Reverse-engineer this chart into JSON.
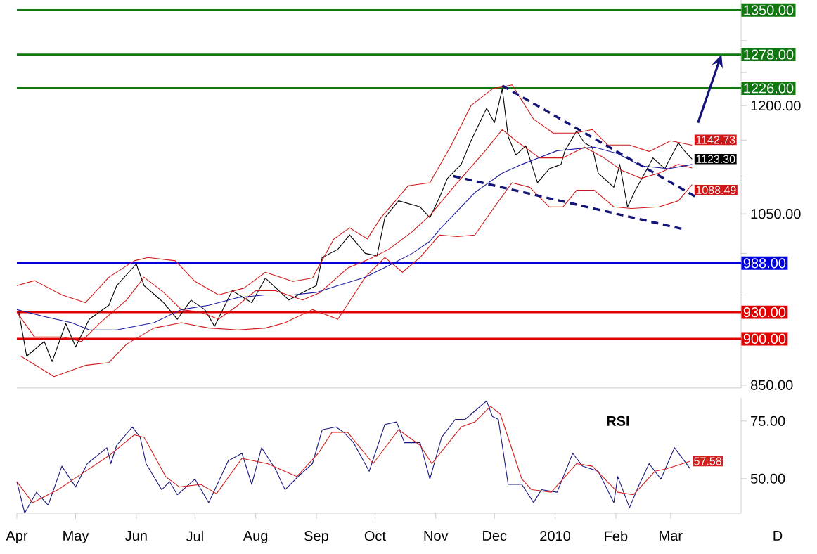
{
  "chart_data": [
    {
      "type": "line",
      "log": "y",
      "tick_labels": "y",
      "xlim": [
        "2009-04-01",
        "2010-04-06"
      ],
      "ylim": [
        847,
        1367
      ],
      "yticks": [
        {
          "value": 850,
          "label": "850.00"
        },
        {
          "value": 900,
          "label": null
        },
        {
          "value": 950,
          "label": null
        },
        {
          "value": 1000,
          "label": null
        },
        {
          "value": 1050,
          "label": "1050.00"
        },
        {
          "value": 1100,
          "label": null
        },
        {
          "value": 1150,
          "label": null
        },
        {
          "value": 1200,
          "label": "1200.00"
        },
        {
          "value": 1250,
          "label": null
        },
        {
          "value": 1300,
          "label": null
        },
        {
          "value": 1350,
          "label": null
        }
      ],
      "series": [
        {
          "color": "#000000",
          "x": [
            "2009-04-02",
            "2009-04-06",
            "2009-04-15",
            "2009-04-19",
            "2009-04-26",
            "2009-05-01",
            "2009-05-08",
            "2009-05-18",
            "2009-05-22",
            "2009-06-01",
            "2009-06-05",
            "2009-06-15",
            "2009-06-22",
            "2009-06-29",
            "2009-07-06",
            "2009-07-11",
            "2009-07-20",
            "2009-07-30",
            "2009-08-06",
            "2009-08-18",
            "2009-08-25",
            "2009-09-01",
            "2009-09-04",
            "2009-09-12",
            "2009-09-18",
            "2009-09-26",
            "2009-10-02",
            "2009-10-06",
            "2009-10-13",
            "2009-10-24",
            "2009-10-29",
            "2009-11-03",
            "2009-11-07",
            "2009-11-14",
            "2009-11-19",
            "2009-11-27",
            "2009-12-01",
            "2009-12-05",
            "2009-12-08",
            "2009-12-12",
            "2009-12-17",
            "2009-12-23",
            "2009-12-29",
            "2010-01-04",
            "2010-01-06",
            "2010-01-12",
            "2010-01-16",
            "2010-01-20",
            "2010-01-23",
            "2010-01-31",
            "2010-02-03",
            "2010-02-07",
            "2010-02-11",
            "2010-02-15",
            "2010-02-20",
            "2010-02-26",
            "2010-03-05",
            "2010-03-08",
            "2010-03-12"
          ],
          "values": [
            930,
            881,
            897,
            875,
            917,
            891,
            922,
            938,
            961,
            987,
            961,
            941,
            922,
            944,
            933,
            914,
            955,
            941,
            970,
            944,
            953,
            961,
            995,
            1005,
            1023,
            1000,
            997,
            1045,
            1067,
            1059,
            1045,
            1072,
            1097,
            1116,
            1149,
            1196,
            1175,
            1225,
            1155,
            1129,
            1142,
            1091,
            1110,
            1116,
            1135,
            1163,
            1146,
            1140,
            1104,
            1085,
            1116,
            1059,
            1081,
            1100,
            1125,
            1110,
            1146,
            1135,
            1123.3
          ],
          "value_labels": [
            null,
            null,
            null,
            null,
            null,
            null,
            null,
            null,
            null,
            null,
            null,
            null,
            null,
            null,
            null,
            null,
            null,
            null,
            null,
            null,
            null,
            null,
            null,
            null,
            null,
            null,
            null,
            null,
            null,
            null,
            null,
            null,
            null,
            null,
            null,
            null,
            null,
            null,
            null,
            null,
            null,
            null,
            null,
            null,
            null,
            null,
            null,
            null,
            null,
            null,
            null,
            null,
            null,
            null,
            null,
            null,
            null,
            null,
            "1123.30"
          ]
        },
        {
          "color": "#d01818",
          "x": [
            "2009-04-01",
            "2009-04-10",
            "2009-04-24",
            "2009-05-06",
            "2009-05-18",
            "2009-05-31",
            "2009-06-07",
            "2009-06-21",
            "2009-07-01",
            "2009-07-13",
            "2009-07-26",
            "2009-08-06",
            "2009-08-20",
            "2009-08-30",
            "2009-09-10",
            "2009-09-18",
            "2009-09-27",
            "2009-10-04",
            "2009-10-18",
            "2009-10-29",
            "2009-11-09",
            "2009-11-19",
            "2009-11-30",
            "2009-12-10",
            "2009-12-21",
            "2009-12-31",
            "2010-01-11",
            "2010-01-20",
            "2010-01-28",
            "2010-02-08",
            "2010-02-18",
            "2010-03-01",
            "2010-03-12"
          ],
          "values": [
            961,
            967,
            950,
            941,
            971,
            991,
            995,
            991,
            966,
            950,
            958,
            977,
            966,
            970,
            1018,
            1032,
            1018,
            1045,
            1087,
            1091,
            1143,
            1200,
            1225,
            1231,
            1180,
            1160,
            1160,
            1165,
            1143,
            1143,
            1134,
            1149,
            1142.73
          ],
          "value_labels": [
            null,
            null,
            null,
            null,
            null,
            null,
            null,
            null,
            null,
            null,
            null,
            null,
            null,
            null,
            null,
            null,
            null,
            null,
            null,
            null,
            null,
            null,
            null,
            null,
            null,
            null,
            null,
            null,
            null,
            null,
            null,
            null,
            "1142.73"
          ]
        },
        {
          "color": "#d01818",
          "x": [
            "2009-04-01",
            "2009-04-10",
            "2009-04-24",
            "2009-05-04",
            "2009-05-13",
            "2009-05-27",
            "2009-06-05",
            "2009-06-15",
            "2009-06-24",
            "2009-07-04",
            "2009-07-13",
            "2009-07-23",
            "2009-08-01",
            "2009-08-11",
            "2009-08-25",
            "2009-09-03",
            "2009-09-17",
            "2009-09-29",
            "2009-10-08",
            "2009-10-20",
            "2009-10-29",
            "2009-11-12",
            "2009-11-26",
            "2009-12-05",
            "2009-12-12",
            "2009-12-24",
            "2010-01-05",
            "2010-01-16",
            "2010-01-26",
            "2010-02-04",
            "2010-02-14",
            "2010-02-23",
            "2010-03-05",
            "2010-03-12"
          ],
          "values": [
            930,
            902,
            902,
            897,
            917,
            944,
            971,
            953,
            933,
            930,
            922,
            938,
            955,
            955,
            944,
            953,
            982,
            994,
            1005,
            1027,
            1048,
            1091,
            1134,
            1165,
            1149,
            1125,
            1125,
            1140,
            1125,
            1108,
            1097,
            1104,
            1116,
            1111
          ]
        },
        {
          "color": "#d01818",
          "x": [
            "2009-04-03",
            "2009-04-20",
            "2009-05-06",
            "2009-05-18",
            "2009-05-27",
            "2009-06-10",
            "2009-06-24",
            "2009-07-08",
            "2009-07-23",
            "2009-08-06",
            "2009-08-16",
            "2009-08-30",
            "2009-09-12",
            "2009-09-26",
            "2009-10-06",
            "2009-10-15",
            "2009-10-24",
            "2009-11-03",
            "2009-11-12",
            "2009-11-21",
            "2009-12-01",
            "2009-12-10",
            "2009-12-19",
            "2009-12-29",
            "2010-01-05",
            "2010-01-12",
            "2010-01-21",
            "2010-01-31",
            "2010-02-09",
            "2010-02-23",
            "2010-03-05",
            "2010-03-12"
          ],
          "values": [
            881,
            859,
            871,
            874,
            894,
            912,
            918,
            912,
            910,
            912,
            918,
            933,
            922,
            971,
            995,
            977,
            995,
            1023,
            1021,
            1023,
            1059,
            1091,
            1085,
            1059,
            1059,
            1081,
            1081,
            1059,
            1057,
            1059,
            1067,
            1088.49
          ],
          "value_labels": [
            null,
            null,
            null,
            null,
            null,
            null,
            null,
            null,
            null,
            null,
            null,
            null,
            null,
            null,
            null,
            null,
            null,
            null,
            null,
            null,
            null,
            null,
            null,
            null,
            null,
            null,
            null,
            null,
            null,
            null,
            null,
            "1088.49"
          ]
        },
        {
          "color": "#1c1ca0",
          "x": [
            "2009-04-01",
            "2009-04-15",
            "2009-04-29",
            "2009-05-08",
            "2009-05-22",
            "2009-06-10",
            "2009-06-24",
            "2009-07-08",
            "2009-07-23",
            "2009-08-06",
            "2009-08-20",
            "2009-09-01",
            "2009-09-12",
            "2009-09-26",
            "2009-10-08",
            "2009-10-20",
            "2009-10-29",
            "2009-11-03",
            "2009-11-21",
            "2009-12-05",
            "2009-12-15",
            "2010-01-02",
            "2010-01-21",
            "2010-02-02",
            "2010-02-14",
            "2010-02-28",
            "2010-03-12"
          ],
          "values": [
            933,
            925,
            918,
            910,
            910,
            918,
            933,
            938,
            947,
            950,
            950,
            953,
            961,
            971,
            985,
            1000,
            1015,
            1030,
            1078,
            1104,
            1116,
            1135,
            1140,
            1131,
            1114,
            1110,
            1116
          ]
        },
        {
          "color": "#141478",
          "line_style": "dashed",
          "x": [
            "2009-12-05",
            "2010-03-14"
          ],
          "values": [
            1230,
            1072
          ]
        },
        {
          "color": "#141478",
          "line_style": "dashed",
          "x": [
            "2009-11-10",
            "2010-03-08"
          ],
          "values": [
            1100,
            1030
          ]
        }
      ],
      "ref_lines": [
        {
          "axis": "y",
          "value": 1350,
          "label": "1350.00",
          "color": "#117711"
        },
        {
          "axis": "y",
          "value": 1278,
          "label": "1278.00",
          "color": "#117711"
        },
        {
          "axis": "y",
          "value": 1226,
          "label": "1226.00",
          "color": "#117711"
        },
        {
          "axis": "y",
          "value": 988,
          "label": "988.00",
          "color": "#0000dd"
        },
        {
          "axis": "y",
          "value": 930,
          "label": "930.00",
          "color": "#e00000"
        },
        {
          "axis": "y",
          "value": 900,
          "label": "900.00",
          "color": "#e00000"
        }
      ]
    },
    {
      "type": "line",
      "title": "RSI",
      "xlim": [
        "2009-04-01",
        "2010-04-06"
      ],
      "ylim": [
        35,
        85
      ],
      "xticks": [
        {
          "value": "2009-04-01",
          "label": "Apr"
        },
        {
          "value": "2009-05-01",
          "label": "May"
        },
        {
          "value": "2009-06-01",
          "label": "Jun"
        },
        {
          "value": "2009-07-01",
          "label": "Jul"
        },
        {
          "value": "2009-08-01",
          "label": "Aug"
        },
        {
          "value": "2009-09-01",
          "label": "Sep"
        },
        {
          "value": "2009-10-01",
          "label": "Oct"
        },
        {
          "value": "2009-11-01",
          "label": "Nov"
        },
        {
          "value": "2009-12-01",
          "label": "Dec"
        },
        {
          "value": "2010-01-01",
          "label": "2010"
        },
        {
          "value": "2010-02-01",
          "label": "Feb"
        },
        {
          "value": "2010-03-01",
          "label": "Mar"
        }
      ],
      "yticks": [
        {
          "value": 50,
          "label": "50.00"
        },
        {
          "value": 75,
          "label": "75.00"
        }
      ],
      "series": [
        {
          "color": "#1a1a80",
          "x": [
            "2009-04-01",
            "2009-04-05",
            "2009-04-11",
            "2009-04-17",
            "2009-04-24",
            "2009-05-01",
            "2009-05-07",
            "2009-05-17",
            "2009-05-19",
            "2009-05-22",
            "2009-05-30",
            "2009-06-03",
            "2009-06-06",
            "2009-06-14",
            "2009-06-18",
            "2009-06-22",
            "2009-07-01",
            "2009-07-08",
            "2009-07-18",
            "2009-07-25",
            "2009-07-30",
            "2009-08-04",
            "2009-08-11",
            "2009-08-16",
            "2009-08-24",
            "2009-08-30",
            "2009-09-04",
            "2009-09-11",
            "2009-09-15",
            "2009-09-20",
            "2009-09-28",
            "2009-10-06",
            "2009-10-12",
            "2009-10-16",
            "2009-10-24",
            "2009-10-29",
            "2009-11-04",
            "2009-11-11",
            "2009-11-16",
            "2009-11-27",
            "2009-11-30",
            "2009-12-03",
            "2009-12-08",
            "2009-12-15",
            "2009-12-21",
            "2009-12-25",
            "2010-01-02",
            "2010-01-10",
            "2010-01-15",
            "2010-01-23",
            "2010-01-31",
            "2010-02-02",
            "2010-02-08",
            "2010-02-13",
            "2010-02-18",
            "2010-02-24",
            "2010-03-03",
            "2010-03-07",
            "2010-03-11"
          ],
          "values": [
            48.7,
            35.1,
            44.1,
            38.5,
            55.4,
            46.4,
            56.5,
            63.4,
            56.5,
            64.5,
            72.4,
            67.9,
            56.5,
            45.2,
            48.7,
            43.0,
            49.8,
            39.6,
            57.7,
            61.0,
            47.5,
            63.4,
            54.3,
            45.2,
            52.0,
            56.5,
            71.2,
            72.4,
            70.1,
            65.6,
            53.2,
            73.5,
            74.6,
            65.6,
            65.6,
            49.8,
            67.9,
            75.7,
            75.7,
            83.7,
            76.9,
            75.7,
            47.5,
            47.5,
            39.6,
            45.2,
            44.1,
            61.0,
            55.4,
            53.2,
            39.6,
            50.9,
            37.4,
            47.5,
            56.5,
            49.8,
            63.4,
            58.8,
            54.3
          ]
        },
        {
          "color": "#d02020",
          "x": [
            "2009-04-01",
            "2009-04-09",
            "2009-04-22",
            "2009-05-02",
            "2009-05-18",
            "2009-05-31",
            "2009-06-05",
            "2009-06-16",
            "2009-06-23",
            "2009-07-04",
            "2009-07-12",
            "2009-07-25",
            "2009-08-07",
            "2009-08-22",
            "2009-09-02",
            "2009-09-09",
            "2009-09-17",
            "2009-09-30",
            "2009-10-13",
            "2009-10-24",
            "2009-10-30",
            "2009-11-14",
            "2009-11-21",
            "2009-11-29",
            "2009-12-04",
            "2009-12-15",
            "2009-12-20",
            "2009-12-30",
            "2010-01-12",
            "2010-01-20",
            "2010-02-02",
            "2010-02-10",
            "2010-02-21",
            "2010-02-27",
            "2010-03-11"
          ],
          "values": [
            48.7,
            39.6,
            45.2,
            50.9,
            59.9,
            69.0,
            67.9,
            50.9,
            46.4,
            47.5,
            43.5,
            58.8,
            56.5,
            50.9,
            61.0,
            70.1,
            70.1,
            56.5,
            71.2,
            64.5,
            56.5,
            72.4,
            74.6,
            81.4,
            78.0,
            49.8,
            45.2,
            44.1,
            56.5,
            55.4,
            44.1,
            43.0,
            53.2,
            54.3,
            57.58
          ],
          "value_labels": [
            null,
            null,
            null,
            null,
            null,
            null,
            null,
            null,
            null,
            null,
            null,
            null,
            null,
            null,
            null,
            null,
            null,
            null,
            null,
            null,
            null,
            null,
            null,
            null,
            null,
            null,
            null,
            null,
            null,
            null,
            null,
            null,
            null,
            null,
            "57.58"
          ]
        }
      ],
      "annotations": [
        "D"
      ]
    }
  ]
}
